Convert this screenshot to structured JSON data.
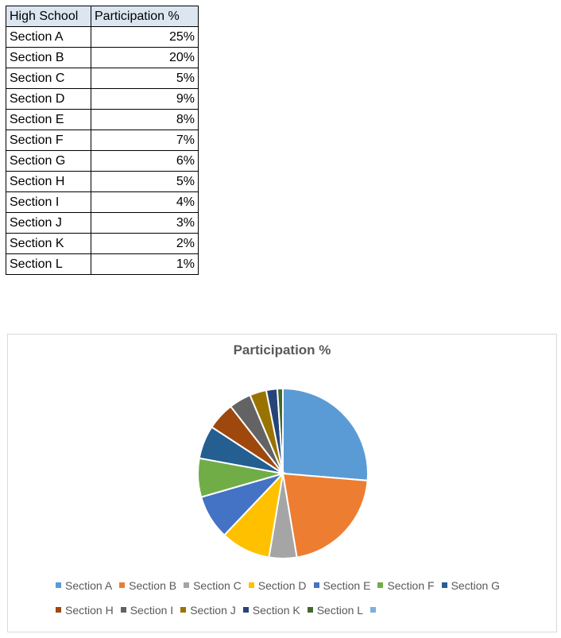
{
  "table": {
    "headers": [
      "High School",
      "Participation %"
    ],
    "rows": [
      {
        "label": "Section A",
        "value": "25%"
      },
      {
        "label": "Section B",
        "value": "20%"
      },
      {
        "label": "Section C",
        "value": "5%"
      },
      {
        "label": "Section D",
        "value": "9%"
      },
      {
        "label": "Section E",
        "value": "8%"
      },
      {
        "label": "Section F",
        "value": "7%"
      },
      {
        "label": "Section G",
        "value": "6%"
      },
      {
        "label": "Section H",
        "value": "5%"
      },
      {
        "label": "Section I",
        "value": "4%"
      },
      {
        "label": "Section J",
        "value": "3%"
      },
      {
        "label": "Section K",
        "value": "2%"
      },
      {
        "label": "Section L",
        "value": "1%"
      }
    ]
  },
  "chart_data": {
    "type": "pie",
    "title": "Participation %",
    "categories": [
      "Section A",
      "Section B",
      "Section C",
      "Section D",
      "Section E",
      "Section F",
      "Section G",
      "Section H",
      "Section I",
      "Section J",
      "Section K",
      "Section L"
    ],
    "values": [
      25,
      20,
      5,
      9,
      8,
      7,
      6,
      5,
      4,
      3,
      2,
      1
    ],
    "colors": [
      "#5b9bd5",
      "#ed7d31",
      "#a5a5a5",
      "#ffc000",
      "#4472c4",
      "#70ad47",
      "#255e91",
      "#9e480e",
      "#636363",
      "#997300",
      "#264478",
      "#43682b",
      "#7cafdd"
    ],
    "legend_placement": "bottom",
    "legend_entries": [
      "Section A",
      "Section B",
      "Section C",
      "Section D",
      "Section E",
      "Section F",
      "Section G",
      "Section H",
      "Section I",
      "Section J",
      "Section K",
      "Section L",
      ""
    ]
  }
}
